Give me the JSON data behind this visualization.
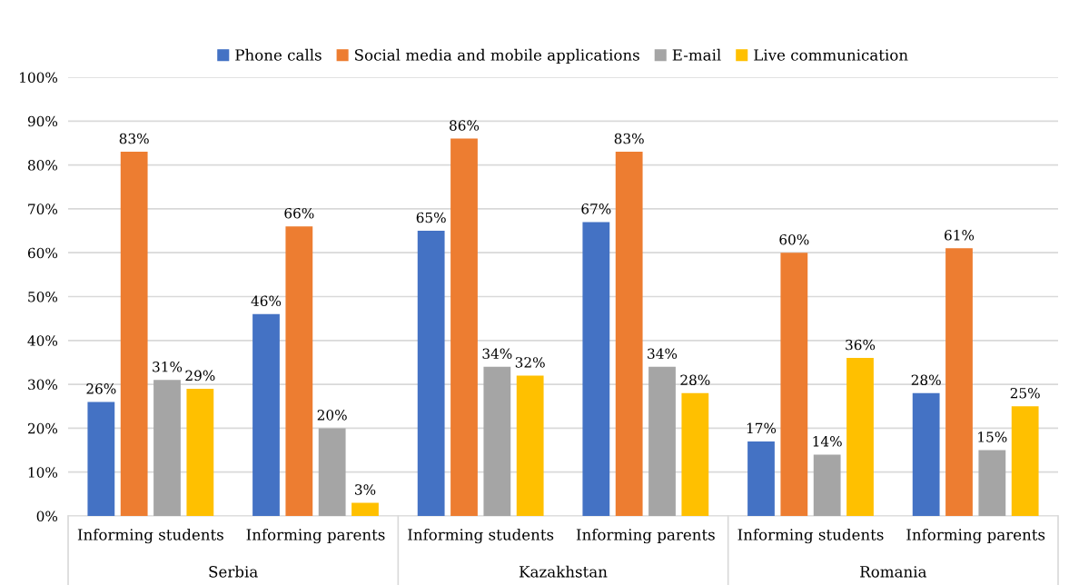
{
  "chart_data": {
    "type": "bar",
    "categories": [
      "Informing students",
      "Informing parents",
      "Informing students",
      "Informing parents",
      "Informing students",
      "Informing parents"
    ],
    "series": [
      {
        "name": "Phone calls",
        "color": "#4472c4",
        "values": [
          26,
          46,
          65,
          67,
          17,
          28
        ],
        "value_labels": [
          "26%",
          "46%",
          "65%",
          "67%",
          "17%",
          "28%"
        ]
      },
      {
        "name": "Social media and mobile applications",
        "color": "#ed7d31",
        "values": [
          83,
          66,
          86,
          83,
          60,
          61
        ],
        "value_labels": [
          "83%",
          "66%",
          "86%",
          "83%",
          "60%",
          "61%"
        ]
      },
      {
        "name": "E-mail",
        "color": "#a5a5a5",
        "values": [
          31,
          20,
          34,
          34,
          14,
          15
        ],
        "value_labels": [
          "31%",
          "20%",
          "34%",
          "34%",
          "14%",
          "15%"
        ]
      },
      {
        "name": "Live communication",
        "color": "#ffc000",
        "values": [
          29,
          3,
          32,
          28,
          36,
          25
        ],
        "value_labels": [
          "29%",
          "3%",
          "32%",
          "28%",
          "36%",
          "25%"
        ]
      }
    ],
    "annotations": [
      "Serbia",
      "Kazakhstan",
      "Romania"
    ],
    "ylim": [
      0,
      100
    ],
    "yticks": [
      {
        "value": 0,
        "label": "0%"
      },
      {
        "value": 10,
        "label": "10%"
      },
      {
        "value": 20,
        "label": "20%"
      },
      {
        "value": 30,
        "label": "30%"
      },
      {
        "value": 40,
        "label": "40%"
      },
      {
        "value": 50,
        "label": "50%"
      },
      {
        "value": 60,
        "label": "60%"
      },
      {
        "value": 70,
        "label": "70%"
      },
      {
        "value": 80,
        "label": "80%"
      },
      {
        "value": 90,
        "label": "90%"
      },
      {
        "value": 100,
        "label": "100%"
      }
    ],
    "grid": "y",
    "legend": "top"
  }
}
